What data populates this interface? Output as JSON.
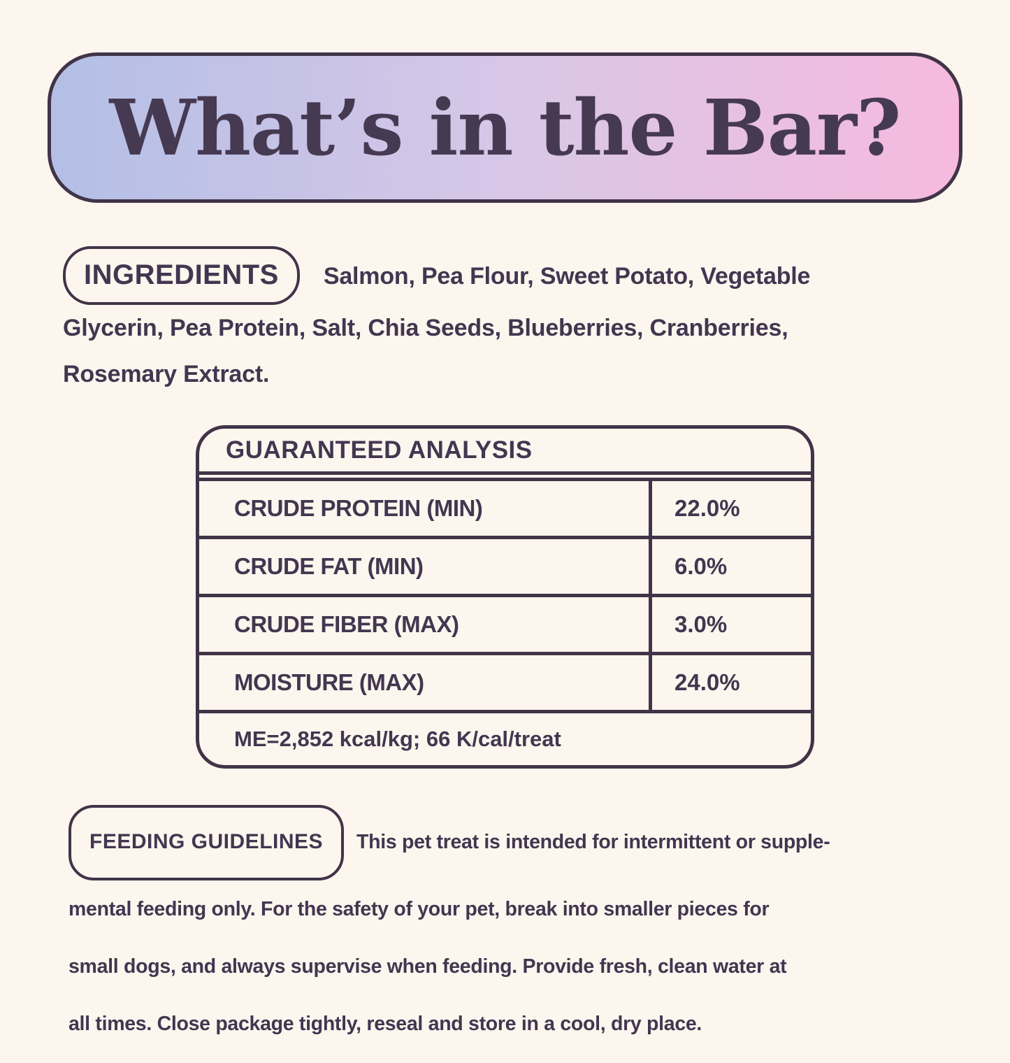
{
  "page": {
    "background_color": "#fdf6ee",
    "ink_color": "#433650"
  },
  "banner": {
    "title": "What’s in the Bar?",
    "gradient_left": "#b3bfe6",
    "gradient_mid": "#d9c7e7",
    "gradient_right": "#f6bade",
    "border_color": "#413448"
  },
  "ingredients": {
    "label": "INGREDIENTS",
    "lines": [
      "Salmon, Pea Flour, Sweet Potato, Vegetable",
      "Glycerin, Pea Protein, Salt, Chia Seeds, Blueberries, Cranberries,",
      "Rosemary Extract."
    ]
  },
  "analysis": {
    "title": "GUARANTEED ANALYSIS",
    "rows": [
      {
        "label": "CRUDE PROTEIN (MIN)",
        "value": "22.0%"
      },
      {
        "label": "CRUDE FAT (MIN)",
        "value": "6.0%"
      },
      {
        "label": "CRUDE FIBER (MAX)",
        "value": "3.0%"
      },
      {
        "label": "MOISTURE (MAX)",
        "value": "24.0%"
      }
    ],
    "footnote": "ME=2,852 kcal/kg; 66 K/cal/treat"
  },
  "feeding": {
    "label": "FEEDING GUIDELINES",
    "lines": [
      "This pet treat is intended for intermittent or supple-",
      "mental feeding only. For the safety of your pet, break into smaller pieces for",
      "small dogs, and always supervise when feeding. Provide fresh, clean water at",
      "all times. Close package tightly, reseal and store in a cool, dry place."
    ]
  }
}
